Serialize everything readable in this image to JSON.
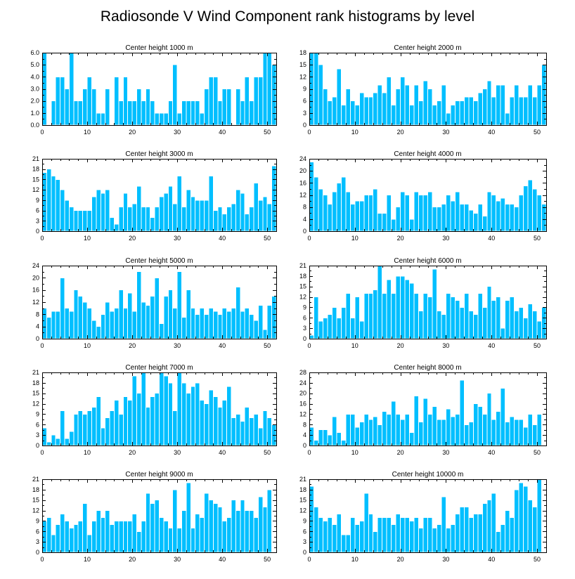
{
  "title": "Radiosonde V Wind Component rank histograms by level",
  "colors": {
    "bar": "#00bfff",
    "axis": "#000000",
    "background": "#ffffff"
  },
  "chart_data": [
    {
      "type": "bar",
      "title": "Center height 1000 m",
      "x_start": 0,
      "xticks": [
        0,
        10,
        20,
        30,
        40,
        50
      ],
      "ylim": [
        0,
        6
      ],
      "yticks": [
        "0.0",
        "1.0",
        "2.0",
        "3.0",
        "4.0",
        "5.0",
        "6.0"
      ],
      "values": [
        6,
        0,
        2,
        4,
        4,
        3,
        6,
        2,
        2,
        3,
        4,
        3,
        1,
        1,
        3,
        0,
        4,
        2,
        4,
        2,
        2,
        3,
        2,
        3,
        2,
        1,
        1,
        1,
        2,
        5,
        1,
        2,
        2,
        2,
        2,
        1,
        3,
        4,
        4,
        2,
        3,
        3,
        0,
        3,
        2,
        4,
        2,
        4,
        4,
        6,
        6,
        5
      ]
    },
    {
      "type": "bar",
      "title": "Center height 2000 m",
      "x_start": 0,
      "xticks": [
        0,
        10,
        20,
        30,
        40,
        50
      ],
      "ylim": [
        0,
        18
      ],
      "yticks": [
        "0",
        "3",
        "6",
        "9",
        "12",
        "15",
        "18"
      ],
      "values": [
        18,
        18,
        15,
        9,
        6,
        7,
        14,
        5,
        9,
        6,
        5,
        8,
        7,
        7,
        8,
        10,
        8,
        12,
        5,
        9,
        12,
        10,
        5,
        10,
        6,
        11,
        9,
        5,
        6,
        10,
        3,
        5,
        6,
        6,
        7,
        7,
        6,
        8,
        9,
        11,
        7,
        10,
        10,
        3,
        7,
        10,
        7,
        7,
        10,
        7,
        10,
        15
      ]
    },
    {
      "type": "bar",
      "title": "Center height 3000 m",
      "x_start": 0,
      "xticks": [
        0,
        10,
        20,
        30,
        40,
        50
      ],
      "ylim": [
        0,
        21
      ],
      "yticks": [
        "0",
        "3",
        "6",
        "9",
        "12",
        "15",
        "18",
        "21"
      ],
      "values": [
        17,
        18,
        16,
        15,
        12,
        9,
        7,
        6,
        6,
        6,
        6,
        10,
        12,
        11,
        12,
        4,
        2,
        7,
        11,
        7,
        8,
        13,
        7,
        7,
        4,
        7,
        10,
        11,
        13,
        8,
        16,
        7,
        12,
        10,
        9,
        9,
        9,
        16,
        6,
        7,
        5,
        7,
        8,
        12,
        11,
        5,
        7,
        14,
        9,
        10,
        8,
        19
      ]
    },
    {
      "type": "bar",
      "title": "Center height 4000 m",
      "x_start": 0,
      "xticks": [
        0,
        10,
        20,
        30,
        40,
        50
      ],
      "ylim": [
        0,
        24
      ],
      "yticks": [
        "0",
        "4",
        "8",
        "12",
        "16",
        "20",
        "24"
      ],
      "values": [
        23,
        18,
        14,
        12,
        9,
        13,
        16,
        18,
        13,
        9,
        10,
        10,
        12,
        12,
        14,
        6,
        6,
        12,
        4,
        8,
        13,
        12,
        4,
        13,
        12,
        12,
        13,
        8,
        8,
        9,
        12,
        10,
        13,
        9,
        9,
        7,
        6,
        9,
        5,
        13,
        12,
        10,
        11,
        9,
        9,
        8,
        12,
        15,
        17,
        14,
        12,
        9
      ]
    },
    {
      "type": "bar",
      "title": "Center height 5000 m",
      "x_start": 0,
      "xticks": [
        0,
        10,
        20,
        30,
        40,
        50
      ],
      "ylim": [
        0,
        24
      ],
      "yticks": [
        "0",
        "4",
        "8",
        "12",
        "16",
        "20",
        "24"
      ],
      "values": [
        10,
        7,
        9,
        9,
        20,
        10,
        9,
        16,
        14,
        12,
        10,
        6,
        4,
        8,
        12,
        9,
        10,
        16,
        10,
        15,
        9,
        22,
        12,
        11,
        14,
        20,
        5,
        14,
        16,
        10,
        22,
        7,
        16,
        10,
        8,
        10,
        8,
        10,
        9,
        8,
        10,
        9,
        10,
        17,
        9,
        10,
        8,
        6,
        11,
        3,
        11,
        14
      ]
    },
    {
      "type": "bar",
      "title": "Center height 6000 m",
      "x_start": 0,
      "xticks": [
        0,
        10,
        20,
        30,
        40,
        50
      ],
      "ylim": [
        0,
        21
      ],
      "yticks": [
        "0",
        "3",
        "6",
        "9",
        "12",
        "15",
        "18",
        "21"
      ],
      "values": [
        1,
        12,
        5,
        6,
        7,
        9,
        6,
        9,
        13,
        6,
        12,
        5,
        13,
        13,
        14,
        21,
        13,
        17,
        13,
        18,
        18,
        17,
        16,
        13,
        8,
        13,
        12,
        20,
        8,
        7,
        13,
        12,
        11,
        9,
        13,
        8,
        7,
        13,
        9,
        15,
        11,
        12,
        3,
        11,
        12,
        8,
        9,
        6,
        10,
        8,
        5,
        9
      ]
    },
    {
      "type": "bar",
      "title": "Center height 7000 m",
      "x_start": 0,
      "xticks": [
        0,
        10,
        20,
        30,
        40,
        50
      ],
      "ylim": [
        0,
        21
      ],
      "yticks": [
        "0",
        "3",
        "6",
        "9",
        "12",
        "15",
        "18",
        "21"
      ],
      "values": [
        5,
        1,
        3,
        2,
        10,
        2,
        4,
        9,
        10,
        9,
        10,
        11,
        14,
        5,
        8,
        10,
        13,
        9,
        14,
        13,
        20,
        15,
        21,
        11,
        14,
        15,
        21,
        20,
        18,
        10,
        21,
        18,
        15,
        17,
        18,
        13,
        12,
        16,
        14,
        11,
        13,
        17,
        8,
        9,
        7,
        11,
        8,
        9,
        5,
        10,
        8,
        6
      ]
    },
    {
      "type": "bar",
      "title": "Center height 8000 m",
      "x_start": 0,
      "xticks": [
        0,
        10,
        20,
        30,
        40,
        50
      ],
      "ylim": [
        0,
        28
      ],
      "yticks": [
        "0",
        "4",
        "8",
        "12",
        "16",
        "20",
        "24",
        "28"
      ],
      "values": [
        7,
        2,
        6,
        6,
        4,
        11,
        5,
        2,
        12,
        12,
        7,
        9,
        12,
        10,
        11,
        8,
        13,
        12,
        17,
        12,
        10,
        12,
        5,
        19,
        9,
        18,
        12,
        15,
        10,
        10,
        14,
        11,
        12,
        25,
        8,
        9,
        16,
        15,
        12,
        20,
        10,
        13,
        22,
        9,
        11,
        10,
        10,
        7,
        12,
        8,
        12,
        0
      ]
    },
    {
      "type": "bar",
      "title": "Center height 9000 m",
      "x_start": 0,
      "xticks": [
        0,
        10,
        20,
        30,
        40,
        50
      ],
      "ylim": [
        0,
        21
      ],
      "yticks": [
        "0",
        "3",
        "6",
        "9",
        "12",
        "15",
        "18",
        "21"
      ],
      "values": [
        9,
        10,
        5,
        8,
        11,
        9,
        7,
        8,
        9,
        14,
        5,
        9,
        12,
        10,
        12,
        8,
        9,
        9,
        9,
        9,
        11,
        6,
        9,
        17,
        14,
        15,
        10,
        9,
        7,
        18,
        7,
        12,
        20,
        7,
        11,
        10,
        17,
        15,
        14,
        13,
        9,
        10,
        15,
        12,
        15,
        12,
        12,
        10,
        16,
        13,
        18,
        0
      ]
    },
    {
      "type": "bar",
      "title": "Center height 10000 m",
      "x_start": 0,
      "xticks": [
        0,
        10,
        20,
        30,
        40,
        50
      ],
      "ylim": [
        0,
        21
      ],
      "yticks": [
        "0",
        "3",
        "6",
        "9",
        "12",
        "15",
        "18",
        "21"
      ],
      "values": [
        19,
        13,
        10,
        9,
        10,
        8,
        11,
        5,
        5,
        10,
        8,
        9,
        17,
        11,
        6,
        10,
        10,
        10,
        8,
        11,
        10,
        10,
        9,
        10,
        7,
        10,
        10,
        7,
        8,
        16,
        7,
        8,
        11,
        13,
        13,
        10,
        11,
        11,
        14,
        15,
        17,
        6,
        8,
        12,
        10,
        18,
        20,
        19,
        15,
        13,
        21,
        0
      ]
    }
  ]
}
